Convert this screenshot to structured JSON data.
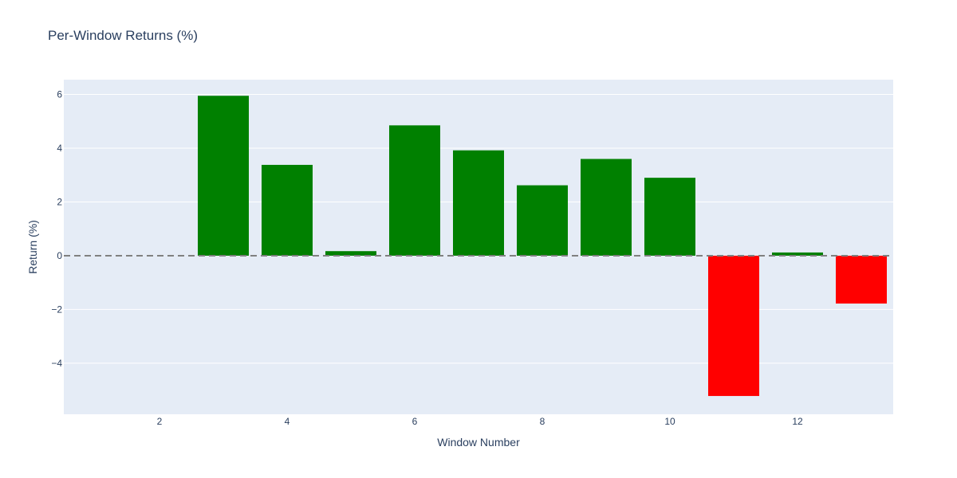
{
  "chart_data": {
    "type": "bar",
    "title": "Per-Window Returns (%)",
    "xlabel": "Window Number",
    "ylabel": "Return (%)",
    "x": [
      1,
      2,
      3,
      4,
      5,
      6,
      7,
      8,
      9,
      10,
      11,
      12,
      13
    ],
    "values": [
      0,
      0,
      5.95,
      3.38,
      0.17,
      4.85,
      3.92,
      2.62,
      3.6,
      2.9,
      -5.22,
      0.12,
      -1.78
    ],
    "xlim": [
      0.5,
      13.5
    ],
    "ylim": [
      -5.9,
      6.55
    ],
    "xticks": [
      2,
      4,
      6,
      8,
      10,
      12
    ],
    "yticks": [
      -4,
      -2,
      0,
      2,
      4,
      6
    ],
    "ytick_labels": [
      "−4",
      "−2",
      "0",
      "2",
      "4",
      "6"
    ],
    "grid": true,
    "zero_line": "dashed",
    "colors": {
      "positive": "#008000",
      "negative": "#ff0000",
      "plot_background": "#e5ecf6",
      "grid": "#ffffff",
      "zero_line": "#808080",
      "text": "#2a3f5f"
    }
  }
}
